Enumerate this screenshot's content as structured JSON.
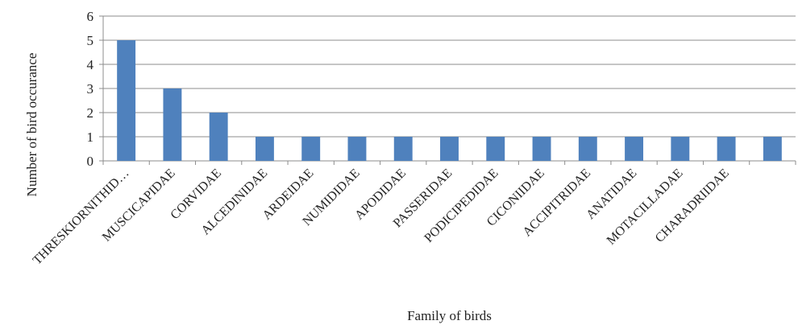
{
  "chart_data": {
    "type": "bar",
    "title": "",
    "xlabel": "Family of birds",
    "ylabel": "Number of bird occurance",
    "ylim": [
      0,
      6
    ],
    "yticks": [
      0,
      1,
      2,
      3,
      4,
      5,
      6
    ],
    "grid": true,
    "legend": "none",
    "bar_color": "#4f81bd",
    "categories": [
      "THRESKIORNITHID…",
      "MUSCICAPIDAE",
      "CORVIDAE",
      "ALCEDINIDAE",
      "ARDEIDAE",
      "NUMIDIDAE",
      "APODIDAE",
      "PASSERIDAE",
      "PODICIPEDIDAE",
      "CICONIIDAE",
      "ACCIPITRIDAE",
      "ANATIDAE",
      "MOTACILLADAE",
      "CHARADRIIDAE",
      ""
    ],
    "values": [
      5,
      3,
      2,
      1,
      1,
      1,
      1,
      1,
      1,
      1,
      1,
      1,
      1,
      1,
      1
    ]
  }
}
